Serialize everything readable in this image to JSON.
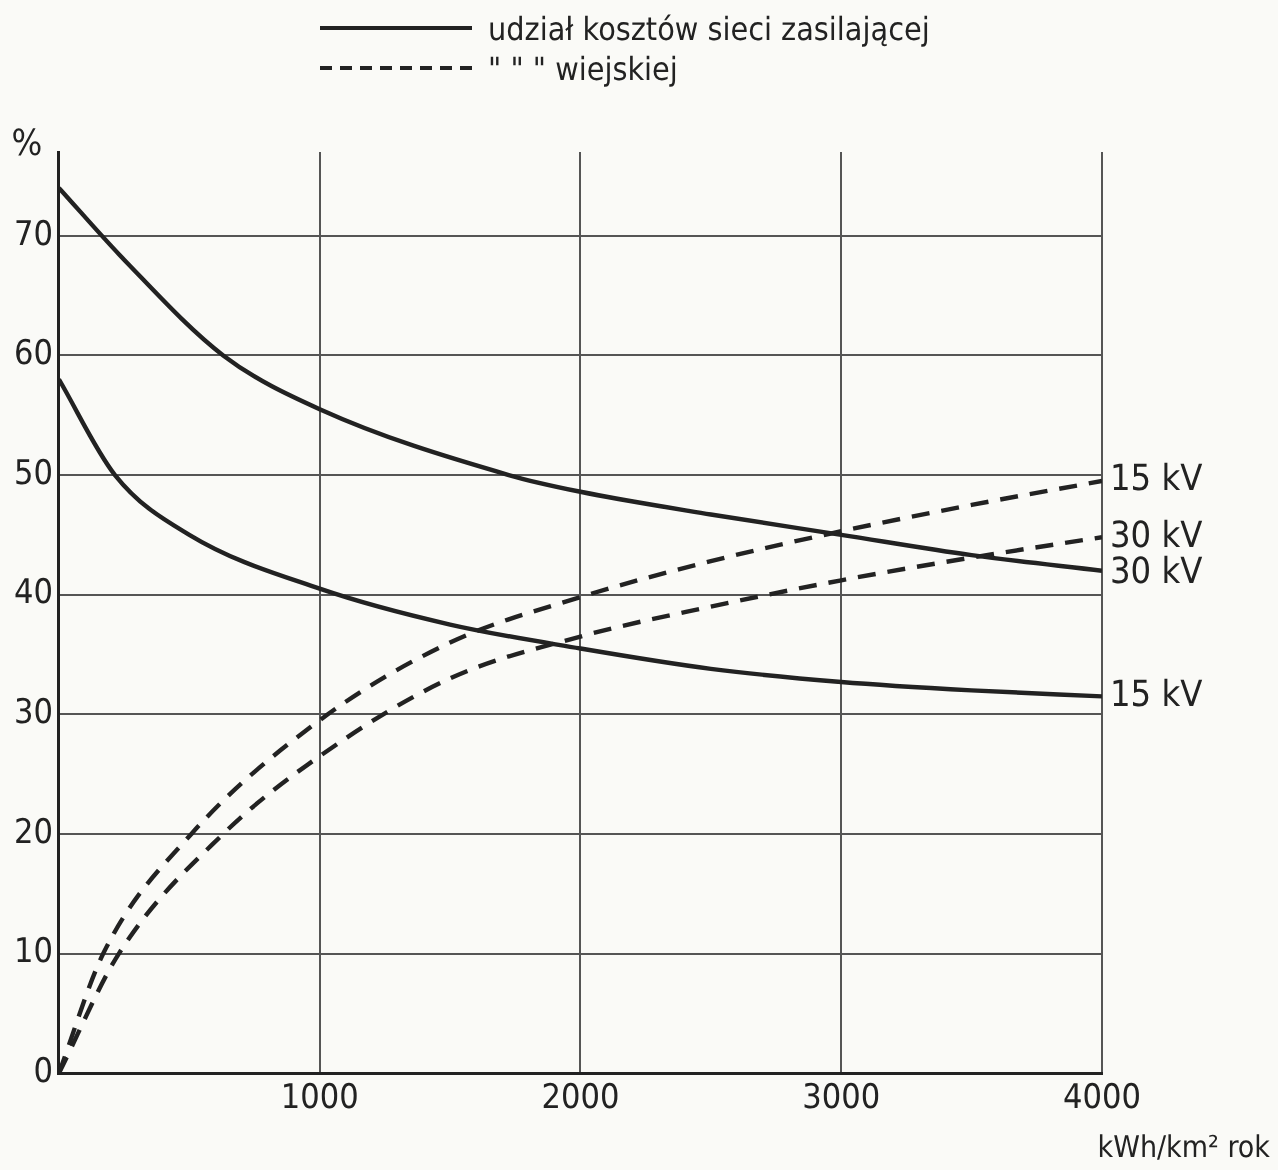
{
  "chart_data": {
    "type": "line",
    "xlabel": "kWh/km² rok",
    "ylabel": "%",
    "annotations": [
      "udział kosztów sieci zasilającej",
      "\"    \"    \"  wiejskiej"
    ],
    "xlim": [
      0,
      4000
    ],
    "xticks": [
      {
        "value": 0,
        "label": null
      },
      1000,
      2000,
      3000,
      4000
    ],
    "ylim": [
      0,
      77
    ],
    "yticks": [
      0,
      10,
      20,
      30,
      40,
      50,
      60,
      70
    ],
    "grid": true,
    "legend": false,
    "marker": "none",
    "series": [
      {
        "name": "30 kV",
        "color": "#222222",
        "line_style": "solid",
        "x": [
          0,
          250,
          630,
          1000,
          1725,
          2000,
          2500,
          3000,
          3500,
          4000
        ],
        "values": [
          74,
          68,
          60,
          55.5,
          50,
          48.6,
          46.7,
          45,
          43.3,
          42
        ]
      },
      {
        "name": "15 kV",
        "color": "#222222",
        "line_style": "solid",
        "x": [
          0,
          215,
          500,
          1000,
          1500,
          2000,
          2500,
          3000,
          3500,
          4000
        ],
        "values": [
          58,
          50,
          45,
          40.5,
          37.5,
          35.5,
          33.8,
          32.7,
          32,
          31.5
        ]
      },
      {
        "name": "15 kV",
        "color": "#222222",
        "line_style": "dashed",
        "x": [
          0,
          170,
          508,
          1000,
          1500,
          2000,
          2500,
          3000,
          3500,
          4000
        ],
        "values": [
          0,
          10,
          20,
          29.5,
          36,
          39.8,
          42.8,
          45.3,
          47.5,
          49.5
        ]
      },
      {
        "name": "30 kV",
        "color": "#222222",
        "line_style": "dashed",
        "x": [
          0,
          230,
          630,
          1000,
          1500,
          2000,
          2500,
          3000,
          3500,
          4000
        ],
        "values": [
          0,
          10,
          20,
          26.5,
          33,
          36.5,
          39,
          41.2,
          43.1,
          44.8
        ]
      }
    ]
  }
}
